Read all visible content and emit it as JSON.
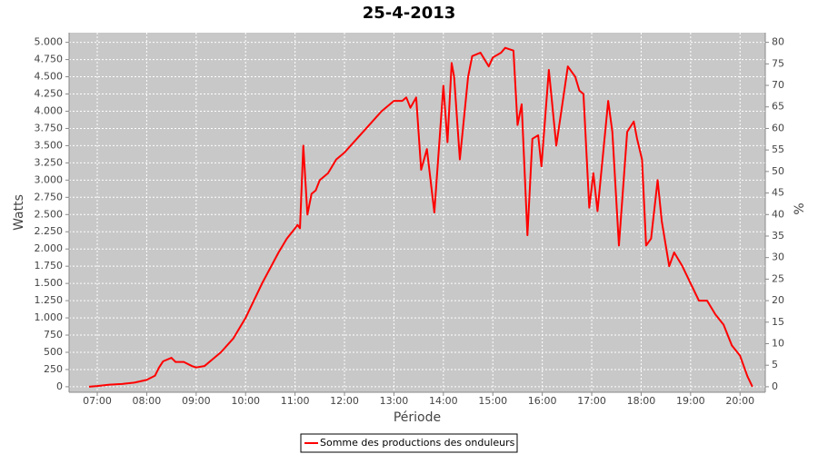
{
  "chart_data": {
    "type": "line",
    "title": "25-4-2013",
    "x_label": "Période",
    "y_label": "Watts",
    "y2_label": "%",
    "grid": true,
    "legend": "bottom",
    "xlim": [
      6.43,
      20.51
    ],
    "xticks": [
      {
        "value": 7,
        "label": "07:00"
      },
      {
        "value": 8,
        "label": "08:00"
      },
      {
        "value": 9,
        "label": "09:00"
      },
      {
        "value": 10,
        "label": "10:00"
      },
      {
        "value": 11,
        "label": "11:00"
      },
      {
        "value": 12,
        "label": "12:00"
      },
      {
        "value": 13,
        "label": "13:00"
      },
      {
        "value": 14,
        "label": "14:00"
      },
      {
        "value": 15,
        "label": "15:00"
      },
      {
        "value": 16,
        "label": "16:00"
      },
      {
        "value": 17,
        "label": "17:00"
      },
      {
        "value": 18,
        "label": "18:00"
      },
      {
        "value": 19,
        "label": "19:00"
      },
      {
        "value": 20,
        "label": "20:00"
      }
    ],
    "ylim": [
      -80,
      5140
    ],
    "yticks": [
      0,
      250,
      500,
      750,
      {
        "value": 1000,
        "label": "1.000"
      },
      {
        "value": 1250,
        "label": "1.250"
      },
      {
        "value": 1500,
        "label": "1.500"
      },
      {
        "value": 1750,
        "label": "1.750"
      },
      {
        "value": 2000,
        "label": "2.000"
      },
      {
        "value": 2250,
        "label": "2.250"
      },
      {
        "value": 2500,
        "label": "2.500"
      },
      {
        "value": 2750,
        "label": "2.750"
      },
      {
        "value": 3000,
        "label": "3.000"
      },
      {
        "value": 3250,
        "label": "3.250"
      },
      {
        "value": 3500,
        "label": "3.500"
      },
      {
        "value": 3750,
        "label": "3.750"
      },
      {
        "value": 4000,
        "label": "4.000"
      },
      {
        "value": 4250,
        "label": "4.250"
      },
      {
        "value": 4500,
        "label": "4.500"
      },
      {
        "value": 4750,
        "label": "4.750"
      },
      {
        "value": 5000,
        "label": "5.000"
      }
    ],
    "y2lim": [
      -1.28,
      82.24
    ],
    "y2ticks": [
      0,
      5,
      10,
      15,
      20,
      25,
      30,
      35,
      40,
      45,
      50,
      55,
      60,
      65,
      70,
      75,
      80
    ],
    "x": [
      6.833,
      7,
      7.25,
      7.5,
      7.75,
      8,
      8.167,
      8.25,
      8.333,
      8.5,
      8.583,
      8.75,
      8.917,
      9,
      9.167,
      9.333,
      9.5,
      9.75,
      10,
      10.333,
      10.667,
      10.833,
      11,
      11.05,
      11.1,
      11.167,
      11.25,
      11.333,
      11.417,
      11.5,
      11.667,
      11.833,
      12,
      12.25,
      12.5,
      12.75,
      13,
      13.167,
      13.25,
      13.333,
      13.45,
      13.55,
      13.667,
      13.817,
      14,
      14.083,
      14.167,
      14.217,
      14.333,
      14.5,
      14.583,
      14.75,
      14.917,
      15,
      15.167,
      15.25,
      15.417,
      15.5,
      15.583,
      15.7,
      15.8,
      15.917,
      15.983,
      16.133,
      16.283,
      16.517,
      16.667,
      16.75,
      16.833,
      16.95,
      17.033,
      17.117,
      17.333,
      17.417,
      17.55,
      17.717,
      17.85,
      17.917,
      18.017,
      18.1,
      18.2,
      18.333,
      18.417,
      18.567,
      18.667,
      18.833,
      19,
      19.167,
      19.333,
      19.5,
      19.667,
      19.833,
      20,
      20.15,
      20.25
    ],
    "series": [
      {
        "name": "Somme des productions des onduleurs",
        "color": "#ff0000",
        "values": [
          0,
          10,
          30,
          40,
          60,
          100,
          160,
          280,
          370,
          420,
          360,
          360,
          300,
          280,
          300,
          400,
          500,
          700,
          1000,
          1500,
          1950,
          2150,
          2300,
          2350,
          2300,
          3500,
          2500,
          2800,
          2850,
          3000,
          3100,
          3300,
          3400,
          3600,
          3800,
          4000,
          4150,
          4150,
          4200,
          4050,
          4200,
          3150,
          3450,
          2530,
          4370,
          3550,
          4700,
          4500,
          3300,
          4500,
          4800,
          4850,
          4650,
          4780,
          4850,
          4920,
          4880,
          3800,
          4100,
          2200,
          3600,
          3650,
          3200,
          4600,
          3500,
          4650,
          4500,
          4300,
          4250,
          2600,
          3100,
          2550,
          4150,
          3700,
          2050,
          3700,
          3850,
          3600,
          3300,
          2050,
          2150,
          3000,
          2400,
          1750,
          1950,
          1750,
          1500,
          1250,
          1250,
          1050,
          900,
          600,
          450,
          150,
          0
        ]
      }
    ]
  }
}
